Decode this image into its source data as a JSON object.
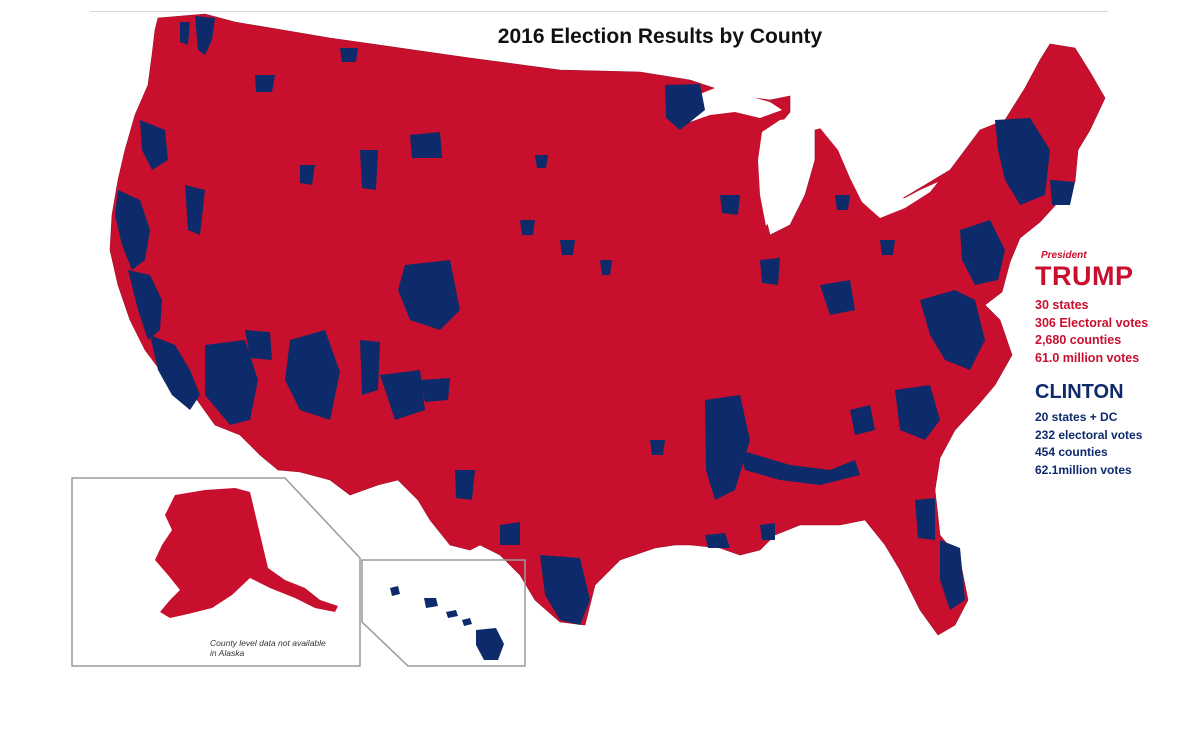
{
  "title": "2016 Election Results by County",
  "colors": {
    "republican": "#c8102e",
    "democrat": "#0d2a6b",
    "inset_border": "#9a9a9a"
  },
  "legend": {
    "label": "President",
    "trump": {
      "name": "TRUMP",
      "stats": [
        "30 states",
        "306 Electoral votes",
        "2,680 counties",
        "61.0 million votes"
      ]
    },
    "clinton": {
      "name": "CLINTON",
      "stats": [
        "20 states + DC",
        "232 electoral votes",
        "454 counties",
        "62.1million votes"
      ]
    }
  },
  "alaska_note": "County level data not available in Alaska"
}
